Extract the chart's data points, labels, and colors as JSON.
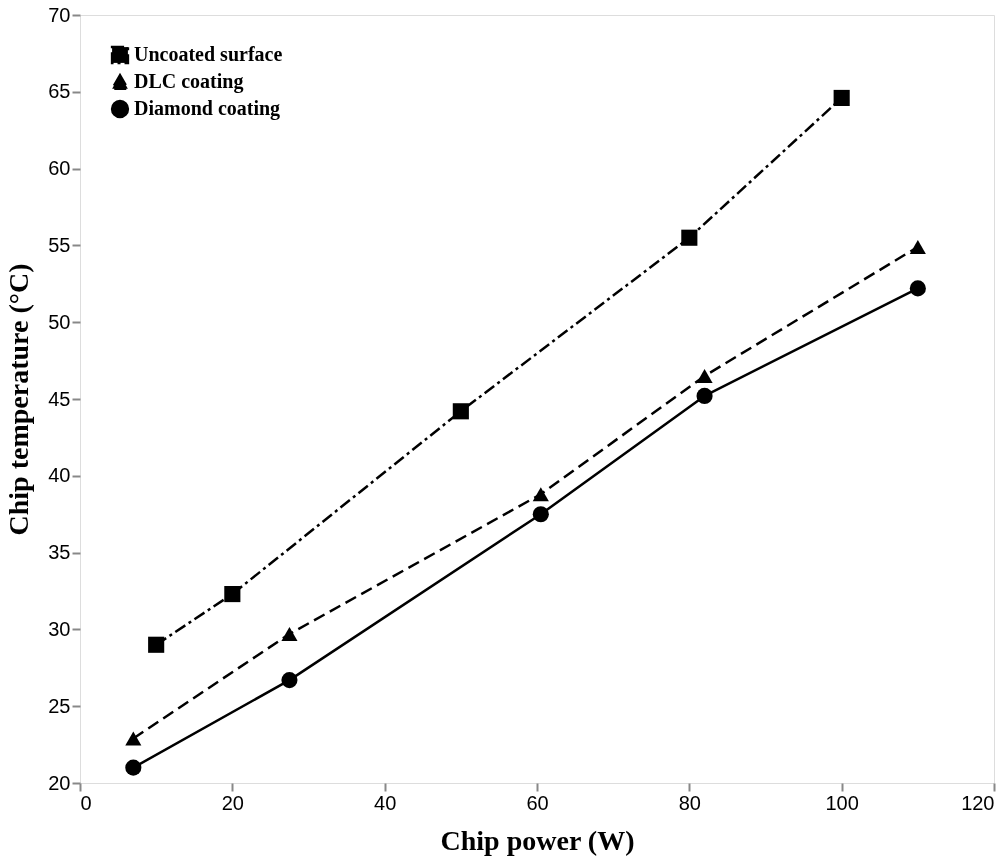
{
  "chart_data": {
    "type": "line",
    "xlabel": "Chip power  (W)",
    "ylabel": "Chip temperature  (°C)",
    "xlim": [
      0,
      120
    ],
    "xticks": [
      0,
      20,
      40,
      60,
      80,
      100,
      120
    ],
    "ylim": [
      20,
      70
    ],
    "yticks": [
      20,
      25,
      30,
      35,
      40,
      45,
      50,
      55,
      60,
      65,
      70
    ],
    "grid": false,
    "legend": "top left",
    "series": [
      {
        "name": "Uncoated surface",
        "color": "#000000",
        "marker": "square",
        "line_style": "dashdot",
        "x": [
          10,
          20,
          50,
          80,
          100
        ],
        "values": [
          29.0,
          32.3,
          44.2,
          55.5,
          64.6
        ]
      },
      {
        "name": "DLC coating",
        "color": "#000000",
        "marker": "triangle",
        "line_style": "dashed",
        "x": [
          7,
          27.5,
          60.5,
          82,
          110
        ],
        "values": [
          22.9,
          29.7,
          38.8,
          46.5,
          54.9
        ]
      },
      {
        "name": "Diamond coating",
        "color": "#000000",
        "marker": "circle",
        "line_style": "solid",
        "x": [
          7,
          27.5,
          60.5,
          82,
          110
        ],
        "values": [
          21.0,
          26.7,
          37.5,
          45.2,
          52.2
        ]
      }
    ]
  }
}
